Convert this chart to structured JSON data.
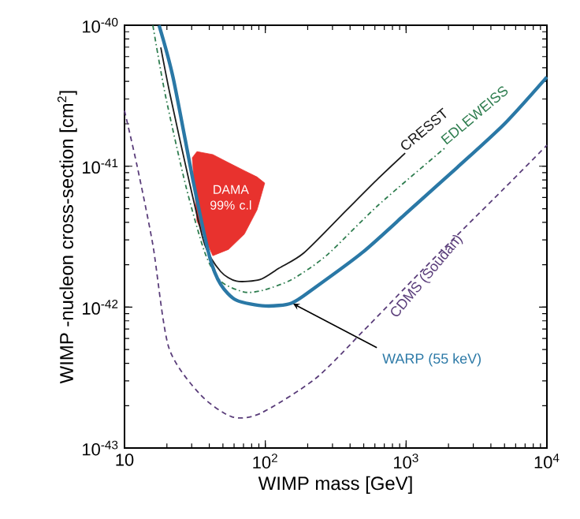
{
  "chart_data": {
    "type": "line",
    "xlabel": "WIMP mass [GeV]",
    "ylabel": "WIMP -nucleon cross-section [cm$^{2}$]",
    "log": "xy",
    "xlim": [
      10,
      10000
    ],
    "ylim": [
      1e-43,
      1e-40
    ],
    "xticks": [
      10,
      {
        "value": 100,
        "label": "10$^{2}$"
      },
      {
        "value": 1000,
        "label": "10$^{3}$"
      },
      {
        "value": 10000,
        "label": "10$^{4}$"
      }
    ],
    "yticks": [
      {
        "value": 1e-43,
        "label": "10$^{-43}$"
      },
      {
        "value": 1e-42,
        "label": "10$^{-42}$"
      },
      {
        "value": 1e-41,
        "label": "10$^{-41}$"
      },
      {
        "value": 1e-40,
        "label": "10$^{-40}$"
      }
    ],
    "marker": "none",
    "annotations": [
      "DAMA 99% c.l"
    ],
    "series": [
      {
        "type": "area",
        "color": "#e8322e",
        "x": [
          30.3,
          32.7,
          42.4,
          54.8,
          71.0,
          87.3,
          99
        ],
        "values": [
          null,
          null,
          null,
          null,
          null,
          null,
          null
        ],
        "upper": [
          1.15e-41,
          1.27e-41,
          1.21e-41,
          1.06e-41,
          9.3e-42,
          8.4e-42,
          7.6e-42
        ],
        "lower": [
          1.15e-41,
          4.1e-42,
          2.32e-42,
          2.57e-42,
          3.3e-42,
          4.9e-42,
          7.6e-42
        ]
      },
      {
        "name": "CRESST",
        "color": "#1a1a1a",
        "line_style": "solid",
        "x": [
          18.1,
          21.1,
          28.8,
          37.2,
          48.2,
          62.4,
          91.8,
          125,
          189,
          379,
          635,
          985
        ],
        "values": [
          6.97e-41,
          3.2e-41,
          7.8e-42,
          2.77e-42,
          1.79e-42,
          1.53e-42,
          1.57e-42,
          1.89e-42,
          2.44e-42,
          4.9e-42,
          8.2e-42,
          1.24e-41
        ]
      },
      {
        "name": "EDLEWEISS",
        "color": "#2e7d4f",
        "line_style": "dashdot",
        "x": [
          15.9,
          19.5,
          27.3,
          37.2,
          48.2,
          71.0,
          96.6,
          154,
          271,
          635,
          1923
        ],
        "values": [
          1e-40,
          3.2e-41,
          7.2e-42,
          2.44e-42,
          1.53e-42,
          1.28e-42,
          1.32e-42,
          1.57e-42,
          2.32e-42,
          5.3e-42,
          1.37e-41
        ]
      },
      {
        "name": "CDMS (Soudan)",
        "color": "#5a3d7a",
        "line_style": "dashed",
        "x": [
          10,
          12.3,
          15.9,
          20.6,
          34.5,
          57.7,
          91.8,
          226,
          491,
          1274,
          2489,
          5000,
          10000
        ],
        "values": [
          2.48e-41,
          1e-41,
          2.77e-42,
          5.2e-43,
          2.4e-43,
          1.67e-43,
          1.76e-43,
          3.1e-43,
          6.7e-43,
          1.79e-42,
          3.5e-42,
          7e-42,
          1.41e-41
        ]
      },
      {
        "name": "WARP (55 keV)",
        "color": "#2a78a6",
        "line_style": "solid",
        "x": [
          17.6,
          22.2,
          31.1,
          40.3,
          48.2,
          62.4,
          100,
          154,
          226,
          491,
          1064,
          2307,
          5000,
          10000
        ],
        "values": [
          1e-40,
          4.2e-41,
          7.4e-42,
          2.26e-42,
          1.45e-42,
          1.12e-42,
          1.02e-42,
          1.07e-42,
          1.38e-42,
          2.45e-42,
          4.9e-42,
          9.8e-42,
          2e-41,
          4.3e-41
        ]
      }
    ]
  }
}
